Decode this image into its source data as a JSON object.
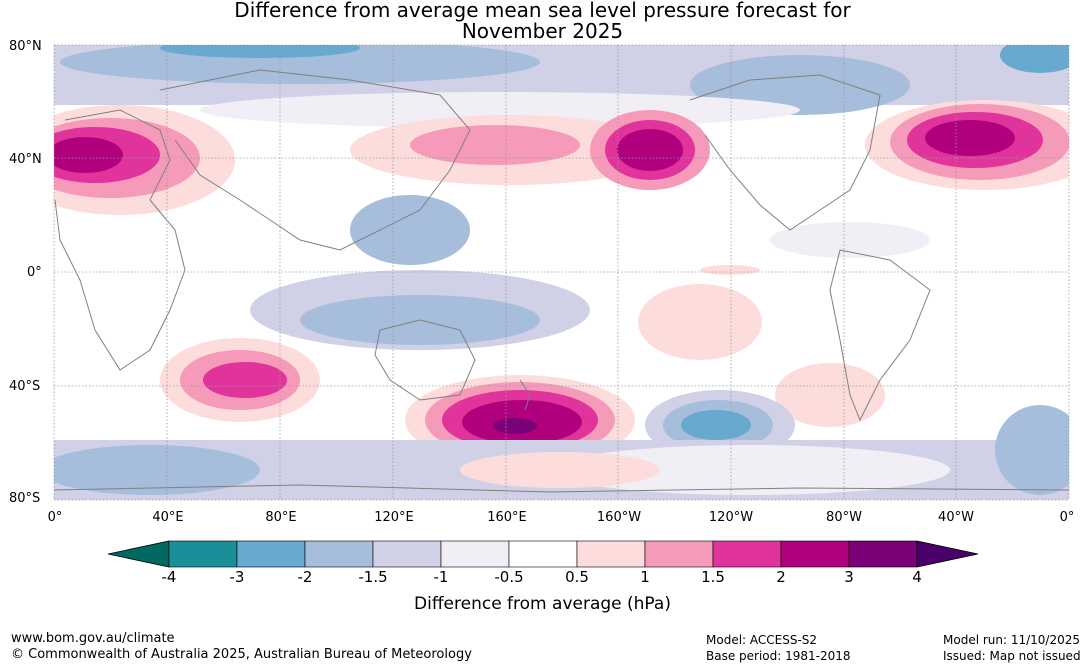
{
  "title": {
    "line1": "Difference from average mean sea level pressure forecast for",
    "line2": "November 2025"
  },
  "map": {
    "lat_labels": [
      "80°N",
      "40°N",
      "0°",
      "40°S",
      "80°S"
    ],
    "lon_labels": [
      "0°",
      "40°E",
      "80°E",
      "120°E",
      "160°E",
      "160°W",
      "120°W",
      "80°W",
      "40°W",
      "0°"
    ],
    "coastline_color": "#808080"
  },
  "colorbar": {
    "ticks": [
      "-4",
      "-3",
      "-2",
      "-1.5",
      "-1",
      "-0.5",
      "0.5",
      "1",
      "1.5",
      "2",
      "3",
      "4"
    ],
    "colors": [
      "#006a60",
      "#1a8f9a",
      "#67a9cf",
      "#a6bddb",
      "#d0d1e6",
      "#f1eef6",
      "#ffffff",
      "#fddcdc",
      "#f59ab8",
      "#e0339c",
      "#b0007e",
      "#7a0177",
      "#4a006a"
    ],
    "label": "Difference from average (hPa)"
  },
  "footer": {
    "website": "www.bom.gov.au/climate",
    "copyright": "© Commonwealth of Australia 2025, Australian Bureau of Meteorology",
    "model": "Model: ACCESS-S2",
    "base_period": "Base period: 1981-2018",
    "model_run": "Model run: 11/10/2025",
    "issued": "Issued: Map not issued"
  }
}
